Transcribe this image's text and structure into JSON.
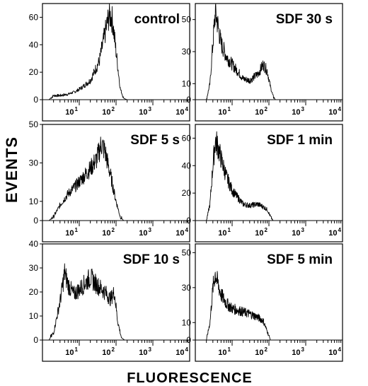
{
  "figure": {
    "y_label": "EVENTS",
    "x_label": "FLUORESCENCE"
  },
  "chart_data": [
    {
      "type": "area",
      "title": "control",
      "xscale": "log",
      "xlim": [
        1,
        10000
      ],
      "ylim": [
        0,
        70
      ],
      "y_ticks": [
        0,
        20,
        40,
        60
      ],
      "x_tick_labels": [
        "10 1",
        "10 2",
        "10 3",
        "10 4"
      ],
      "x": [
        1.5,
        2,
        3,
        5,
        8,
        12,
        20,
        35,
        50,
        65,
        80,
        100,
        130,
        160,
        200
      ],
      "y": [
        0,
        3,
        3,
        4,
        6,
        9,
        14,
        28,
        48,
        62,
        58,
        35,
        8,
        1,
        0
      ]
    },
    {
      "type": "area",
      "title": "SDF 30 s",
      "xscale": "log",
      "xlim": [
        1,
        10000
      ],
      "ylim": [
        0,
        60
      ],
      "y_ticks": [
        0,
        10,
        30,
        50
      ],
      "x_tick_labels": [
        "10 1",
        "10 2",
        "10 3",
        "10 4"
      ],
      "x": [
        2,
        2.5,
        3,
        3.5,
        4,
        5,
        7,
        10,
        15,
        20,
        30,
        50,
        70,
        90,
        110,
        130,
        150
      ],
      "y": [
        0,
        10,
        35,
        55,
        48,
        35,
        27,
        22,
        17,
        13,
        12,
        16,
        22,
        18,
        8,
        2,
        0
      ]
    },
    {
      "type": "area",
      "title": "SDF 5 s",
      "xscale": "log",
      "xlim": [
        1,
        10000
      ],
      "ylim": [
        0,
        50
      ],
      "y_ticks": [
        0,
        10,
        30,
        50
      ],
      "x_tick_labels": [
        "10 1",
        "10 2",
        "10 3",
        "10 4"
      ],
      "x": [
        1.5,
        2,
        3,
        5,
        8,
        12,
        20,
        30,
        40,
        50,
        70,
        100,
        130,
        160
      ],
      "y": [
        0,
        2,
        8,
        14,
        18,
        22,
        27,
        32,
        40,
        36,
        24,
        10,
        2,
        0
      ]
    },
    {
      "type": "area",
      "title": "SDF 1 min",
      "xscale": "log",
      "xlim": [
        1,
        10000
      ],
      "ylim": [
        0,
        70
      ],
      "y_ticks": [
        0,
        20,
        40,
        60
      ],
      "x_tick_labels": [
        "10 1",
        "10 2",
        "10 3",
        "10 4"
      ],
      "x": [
        2,
        2.5,
        3,
        3.5,
        4,
        5,
        7,
        10,
        15,
        20,
        30,
        50,
        70,
        90,
        110,
        130
      ],
      "y": [
        0,
        12,
        40,
        58,
        55,
        45,
        32,
        22,
        16,
        12,
        11,
        12,
        10,
        8,
        3,
        0
      ]
    },
    {
      "type": "area",
      "title": "SDF 10 s",
      "xscale": "log",
      "xlim": [
        1,
        10000
      ],
      "ylim": [
        0,
        40
      ],
      "y_ticks": [
        0,
        10,
        20,
        30,
        40
      ],
      "x_tick_labels": [
        "10 1",
        "10 2",
        "10 3",
        "10 4"
      ],
      "x": [
        1.5,
        2,
        3,
        4,
        5,
        7,
        10,
        15,
        20,
        30,
        50,
        70,
        90,
        110,
        140,
        170
      ],
      "y": [
        0,
        3,
        16,
        28,
        23,
        19,
        21,
        24,
        26,
        23,
        20,
        17,
        20,
        8,
        1,
        0
      ]
    },
    {
      "type": "area",
      "title": "SDF 5 min",
      "xscale": "log",
      "xlim": [
        1,
        10000
      ],
      "ylim": [
        0,
        55
      ],
      "y_ticks": [
        0,
        10,
        30,
        50
      ],
      "x_tick_labels": [
        "10 1",
        "10 2",
        "10 3",
        "10 4"
      ],
      "x": [
        2,
        2.5,
        3,
        3.5,
        4,
        5,
        7,
        10,
        15,
        20,
        30,
        50,
        70,
        90,
        110
      ],
      "y": [
        0,
        10,
        30,
        38,
        33,
        26,
        21,
        18,
        17,
        16,
        15,
        13,
        11,
        5,
        0
      ]
    }
  ]
}
